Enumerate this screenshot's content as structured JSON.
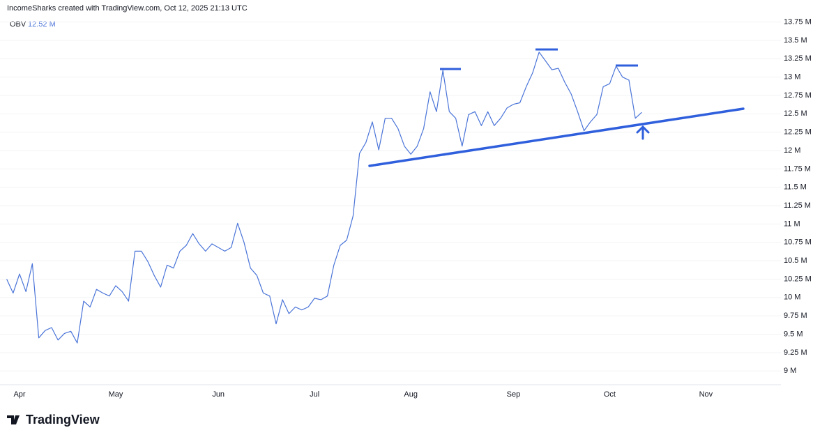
{
  "header": "IncomeSharks created with TradingView.com, Oct 12, 2025 21:13 UTC",
  "footer": "TradingView",
  "chart_data": {
    "type": "line",
    "legend_value": "12.52 M",
    "categories": [
      null,
      null,
      "Apr",
      null,
      null,
      null,
      null,
      null,
      null,
      null,
      null,
      null,
      null,
      null,
      null,
      null,
      null,
      "May",
      null,
      null,
      null,
      null,
      null,
      null,
      null,
      null,
      null,
      null,
      null,
      null,
      null,
      null,
      null,
      "Jun",
      null,
      null,
      null,
      null,
      null,
      null,
      null,
      null,
      null,
      null,
      null,
      null,
      null,
      null,
      "Jul",
      null,
      null,
      null,
      null,
      null,
      null,
      null,
      null,
      null,
      null,
      null,
      null,
      null,
      null,
      "Aug",
      null,
      null,
      null,
      null,
      null,
      null,
      null,
      null,
      null,
      null,
      null,
      null,
      null,
      null,
      null,
      "Sep",
      null,
      null,
      null,
      null,
      null,
      null,
      null,
      null,
      null,
      null,
      null,
      null,
      null,
      null,
      "Oct",
      null,
      null,
      null,
      null,
      null,
      null,
      null,
      null,
      null,
      null,
      null,
      null,
      null,
      null,
      "Nov"
    ],
    "series": [
      {
        "name": "OBV",
        "color": "#4a74d8",
        "values": [
          10.25,
          10.06,
          10.32,
          10.08,
          10.46,
          9.45,
          9.55,
          9.59,
          9.42,
          9.51,
          9.54,
          9.38,
          9.95,
          9.87,
          10.11,
          10.06,
          10.02,
          10.16,
          10.08,
          9.95,
          10.63,
          10.63,
          10.49,
          10.3,
          10.14,
          10.44,
          10.4,
          10.63,
          10.71,
          10.87,
          10.73,
          10.63,
          10.73,
          10.68,
          10.63,
          10.68,
          11.01,
          10.75,
          10.4,
          10.3,
          10.06,
          10.02,
          9.64,
          9.97,
          9.78,
          9.87,
          9.83,
          9.87,
          9.99,
          9.97,
          10.02,
          10.44,
          10.71,
          10.78,
          11.11,
          11.96,
          12.11,
          12.39,
          12.01,
          12.44,
          12.44,
          12.3,
          12.06,
          11.95,
          12.06,
          12.3,
          12.8,
          12.53,
          13.09,
          12.53,
          12.44,
          12.06,
          12.49,
          12.53,
          12.34,
          12.53,
          12.34,
          12.44,
          12.58,
          12.63,
          12.65,
          12.87,
          13.06,
          13.34,
          13.22,
          13.1,
          13.12,
          12.93,
          12.77,
          12.53,
          12.27,
          12.39,
          12.49,
          12.87,
          12.91,
          13.15,
          13.0,
          12.96,
          12.44,
          12.52,
          null,
          null,
          null,
          null,
          null,
          null,
          null,
          null,
          null,
          null
        ]
      }
    ],
    "ylim": [
      8.85,
      13.86
    ],
    "yticks": [
      {
        "value": 9,
        "label": "9 M"
      },
      {
        "value": 9.25,
        "label": "9.25 M"
      },
      {
        "value": 9.5,
        "label": "9.5 M"
      },
      {
        "value": 9.75,
        "label": "9.75 M"
      },
      {
        "value": 10,
        "label": "10 M"
      },
      {
        "value": 10.25,
        "label": "10.25 M"
      },
      {
        "value": 10.5,
        "label": "10.5 M"
      },
      {
        "value": 10.75,
        "label": "10.75 M"
      },
      {
        "value": 11,
        "label": "11 M"
      },
      {
        "value": 11.25,
        "label": "11.25 M"
      },
      {
        "value": 11.5,
        "label": "11.5 M"
      },
      {
        "value": 11.75,
        "label": "11.75 M"
      },
      {
        "value": 12,
        "label": "12 M"
      },
      {
        "value": 12.25,
        "label": "12.25 M"
      },
      {
        "value": 12.5,
        "label": "12.5 M"
      },
      {
        "value": 12.75,
        "label": "12.75 M"
      },
      {
        "value": 13,
        "label": "13 M"
      },
      {
        "value": 13.25,
        "label": "13.25 M"
      },
      {
        "value": 13.5,
        "label": "13.5 M"
      },
      {
        "value": 13.75,
        "label": "13.75 M"
      }
    ],
    "grid": true
  }
}
